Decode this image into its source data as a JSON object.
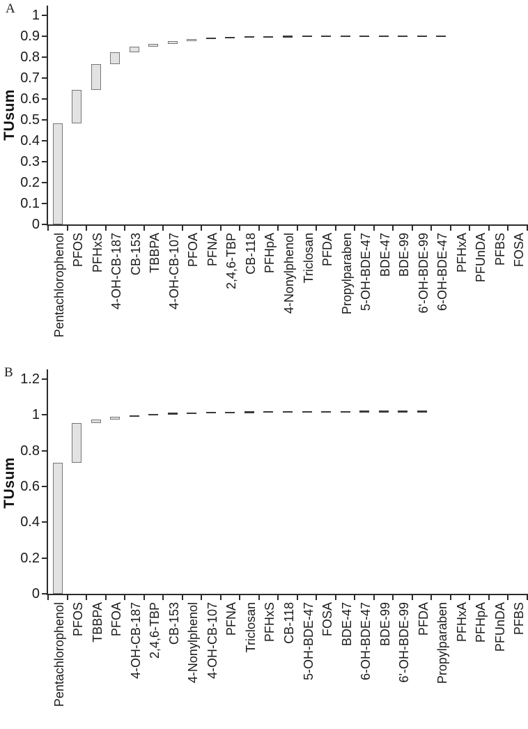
{
  "colors": {
    "bar_fill": "#e2e2e2",
    "bar_border": "#767676",
    "dash": "#3a3a3a",
    "axis": "#2b2b2b",
    "text": "#1a1a1a",
    "background": "#ffffff"
  },
  "chart_data": [
    {
      "type": "bar",
      "subtype": "cumulative-waterfall",
      "panel_label": "A",
      "title": "",
      "xlabel": "",
      "ylabel": "TUsum",
      "ylim": [
        0,
        1
      ],
      "yticks": [
        "0",
        "0.1",
        "0.2",
        "0.3",
        "0.4",
        "0.5",
        "0.6",
        "0.7",
        "0.8",
        "0.9",
        "1"
      ],
      "grid": false,
      "legend": "none",
      "categories": [
        "Pentachlorophenol",
        "PFOS",
        "PFHxS",
        "4-OH-CB-187",
        "CB-153",
        "TBBPA",
        "4-OH-CB-107",
        "PFOA",
        "PFNA",
        "2,4,6-TBP",
        "CB-118",
        "PFHpA",
        "4-Nonylphenol",
        "Triclosan",
        "PFDA",
        "Propylparaben",
        "5-OH-BDE-47",
        "BDE-47",
        "BDE-99",
        "6'-OH-BDE-99",
        "6-OH-BDE-47",
        "PFHxA",
        "PFUnDA",
        "PFBS",
        "FOSA"
      ],
      "segments": [
        [
          0,
          0.483
        ],
        [
          0.483,
          0.645
        ],
        [
          0.645,
          0.766
        ],
        [
          0.766,
          0.825
        ],
        [
          0.825,
          0.849
        ],
        [
          0.849,
          0.865
        ],
        [
          0.865,
          0.876
        ],
        [
          0.876,
          0.886
        ],
        [
          0.886,
          0.89
        ],
        [
          0.89,
          0.892
        ],
        [
          0.892,
          0.8935
        ],
        [
          0.8935,
          0.8945
        ],
        [
          0.8945,
          0.8952
        ],
        [
          0.8952,
          0.8957
        ],
        [
          0.8957,
          0.896
        ],
        [
          0.896,
          0.8962
        ],
        [
          0.8962,
          0.8964
        ],
        [
          0.8964,
          0.8965
        ],
        [
          0.8965,
          0.8966
        ],
        [
          0.8966,
          0.8966
        ],
        [
          0.8966,
          0.8967
        ],
        null,
        null,
        null,
        null
      ]
    },
    {
      "type": "bar",
      "subtype": "cumulative-waterfall",
      "panel_label": "B",
      "title": "",
      "xlabel": "",
      "ylabel": "TUsum",
      "ylim": [
        0,
        1.2
      ],
      "yticks": [
        "0",
        "0.2",
        "0.4",
        "0.6",
        "0.8",
        "1",
        "1.2"
      ],
      "grid": false,
      "legend": "none",
      "categories": [
        "Pentachlorophenol",
        "PFOS",
        "TBBPA",
        "PFOA",
        "4-OH-CB-187",
        "2,4,6-TBP",
        "CB-153",
        "4-Nonylphenol",
        "4-OH-CB-107",
        "PFNA",
        "Triclosan",
        "PFHxS",
        "CB-118",
        "5-OH-BDE-47",
        "FOSA",
        "BDE-47",
        "6-OH-BDE-47",
        "BDE-99",
        "6'-OH-BDE-99",
        "PFDA",
        "Propylparaben",
        "PFHxA",
        "PFHpA",
        "PFUnDA",
        "PFBS"
      ],
      "segments": [
        [
          0,
          0.734
        ],
        [
          0.734,
          0.955
        ],
        [
          0.955,
          0.975
        ],
        [
          0.975,
          0.988
        ],
        [
          0.988,
          0.997
        ],
        [
          0.997,
          1.002
        ],
        [
          1.002,
          1.005
        ],
        [
          1.005,
          1.0073
        ],
        [
          1.0073,
          1.009
        ],
        [
          1.009,
          1.0102
        ],
        [
          1.0102,
          1.0112
        ],
        [
          1.0112,
          1.012
        ],
        [
          1.012,
          1.0126
        ],
        [
          1.0126,
          1.013
        ],
        [
          1.013,
          1.0133
        ],
        [
          1.0133,
          1.0136
        ],
        [
          1.0136,
          1.0138
        ],
        [
          1.0138,
          1.0139
        ],
        [
          1.0139,
          1.014
        ],
        [
          1.014,
          1.0141
        ],
        null,
        null,
        null,
        null,
        null
      ]
    }
  ]
}
